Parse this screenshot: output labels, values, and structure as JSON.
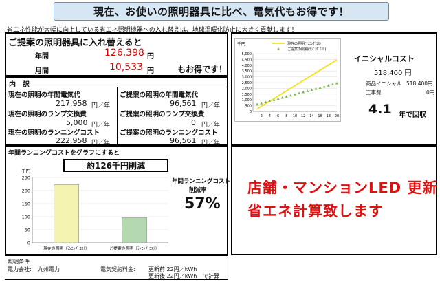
{
  "banner": {
    "title": "現在、お使いの照明器具に比べ、電気代もお得です！"
  },
  "subtitle": "省エネ性能が大幅に向上している省エネ照明機器への入れ替えは、地球温暖化防止に大きく貢献します！",
  "summary": {
    "heading": "ご提案の照明器具に入れ替えると",
    "annual_label": "年間",
    "annual_value": "126,398",
    "annual_unit": "円",
    "monthly_label": "月間",
    "monthly_value": "10,533",
    "monthly_unit": "円",
    "tagline": "もお得です！"
  },
  "breakdown": {
    "heading": "内　訳",
    "current_power_label": "現在の照明の年間電気代",
    "current_power_value": "217,958",
    "proposed_power_label": "ご提案の照明の年間電気代",
    "proposed_power_value": "96,561",
    "current_lamp_label": "現在の照明のランプ交換費",
    "current_lamp_value": "5,000",
    "proposed_lamp_label": "ご提案の照明のランプ交換費",
    "proposed_lamp_value": "0",
    "current_running_label": "現在の照明のランニングコスト",
    "current_running_value": "222,958",
    "proposed_running_label": "ご提案の照明のランニングコスト",
    "proposed_running_value": "96,561",
    "unit": "円／年"
  },
  "cost_chart": {
    "heading": "年間ランニングコストをグラフにすると",
    "reduction_label": "約126千円削減",
    "rate_label_1": "年間ランニングコスト",
    "rate_label_2": "削減率",
    "rate_value": "57%"
  },
  "initial": {
    "title": "イニシャルコスト",
    "total": "518,400 円",
    "product_label": "商品イニシャル",
    "product_value": "518,400円",
    "work_label": "工事費",
    "work_value": "0円",
    "payback_value": "4.1",
    "payback_suffix": "年で回収"
  },
  "promo": {
    "line1": "店舗・マンションLED 更新",
    "line2": "省エネ計算致します"
  },
  "conditions": {
    "heading": "照明条件",
    "company_label": "電力会社:",
    "company_value": "九州電力",
    "rate_label": "電気契約料金:",
    "rate_before": "更新前 22円／kWh",
    "rate_after": "更新後 22円／kWh",
    "calc_note": "で計算"
  },
  "colors": {
    "current": "#f4f4b0",
    "proposed": "#b4d8b0",
    "line_current": "#f2e21a",
    "line_proposed": "#7ab648",
    "promo": "#e01010"
  },
  "chart_data": [
    {
      "type": "line",
      "ylabel": "千円",
      "x": [
        1,
        2,
        3,
        4,
        5,
        6,
        7,
        8,
        9,
        10,
        11,
        12,
        13,
        14,
        15,
        16,
        17,
        18,
        19,
        20
      ],
      "xticks": [
        2,
        4,
        6,
        8,
        10,
        12,
        14,
        16,
        18,
        20
      ],
      "yticks": [
        "0",
        "500",
        "1,000",
        "1,500",
        "2,000",
        "2,500",
        "3,000",
        "3,500",
        "4,000",
        "4,500",
        "5,000"
      ],
      "ylim": [
        0,
        5000
      ],
      "xlim": [
        0,
        20
      ],
      "series": [
        {
          "name": "現在の照明(ﾗﾝﾆﾝｸﾞｺｽﾄ)",
          "values": [
            223,
            446,
            669,
            892,
            1115,
            1338,
            1561,
            1784,
            2007,
            2230,
            2453,
            2676,
            2899,
            3122,
            3345,
            3568,
            3791,
            4014,
            4237,
            4459
          ]
        },
        {
          "name": "ご提案の照明(ﾗﾝﾆﾝｸﾞｺｽﾄ)",
          "values": [
            615,
            712,
            808,
            905,
            1001,
            1098,
            1194,
            1291,
            1387,
            1484,
            1580,
            1677,
            1773,
            1870,
            1966,
            2063,
            2159,
            2256,
            2352,
            2449
          ]
        }
      ],
      "legend": "top"
    },
    {
      "type": "bar",
      "ylabel": "千円",
      "categories": [
        "現在の照明（ﾗﾝﾆﾝｸﾞｺｽﾄ）",
        "ご提案の照明（ﾗﾝﾆﾝｸﾞｺｽﾄ）"
      ],
      "values": [
        223,
        97
      ],
      "yticks": [
        "0",
        "50",
        "100",
        "150",
        "200",
        "250"
      ],
      "ylim": [
        0,
        250
      ]
    }
  ]
}
